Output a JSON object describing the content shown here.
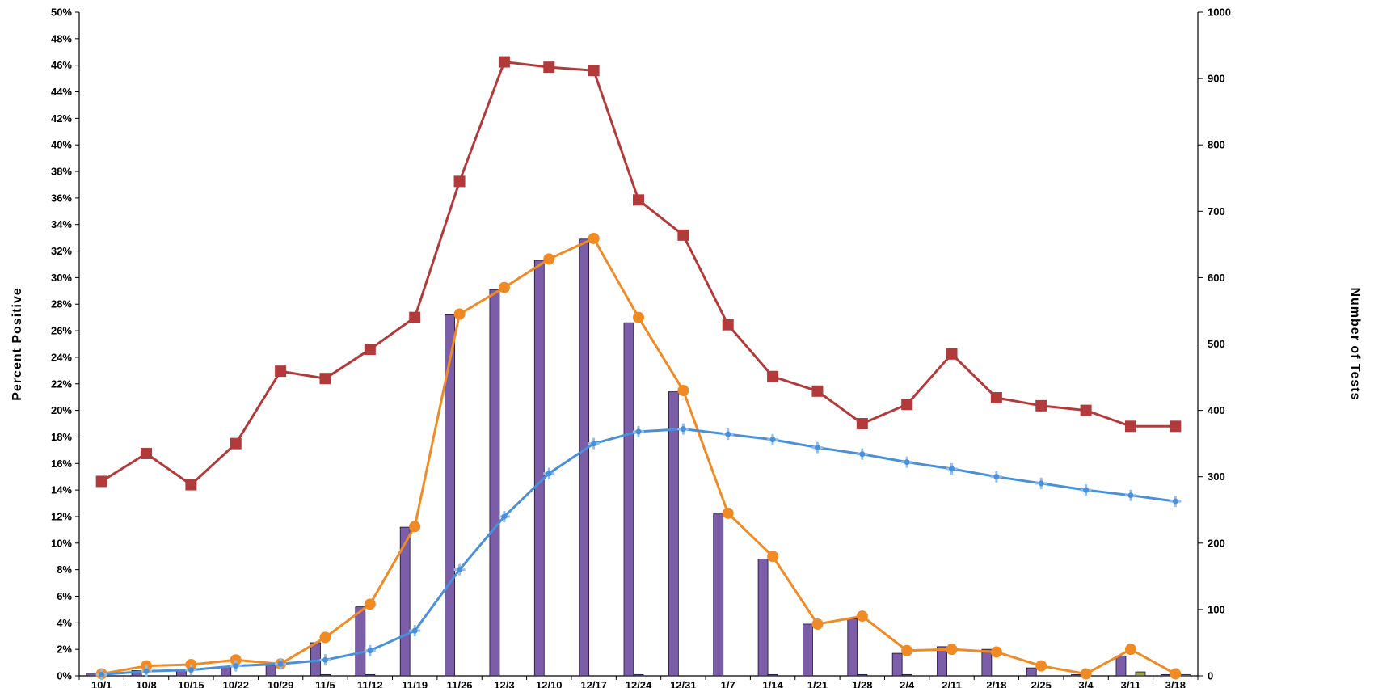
{
  "chart_data": {
    "type": "bar",
    "title": "",
    "ylabel": "Percent Positive",
    "y2label": "Number of Tests",
    "ylim": [
      0,
      50
    ],
    "y2lim": [
      0,
      1000
    ],
    "categories": [
      "10/1",
      "10/8",
      "10/15",
      "10/22",
      "10/29",
      "11/5",
      "11/12",
      "11/19",
      "11/26",
      "12/3",
      "12/10",
      "12/17",
      "12/24",
      "12/31",
      "1/7",
      "1/14",
      "1/21",
      "1/28",
      "2/4",
      "2/11",
      "2/18",
      "2/25",
      "3/4",
      "3/11",
      "3/18"
    ],
    "y_ticks": [
      "0%",
      "2%",
      "4%",
      "6%",
      "8%",
      "10%",
      "12%",
      "14%",
      "16%",
      "18%",
      "20%",
      "22%",
      "24%",
      "26%",
      "28%",
      "30%",
      "32%",
      "34%",
      "36%",
      "38%",
      "40%",
      "42%",
      "44%",
      "46%",
      "48%",
      "50%"
    ],
    "y2_ticks": [
      "0",
      "100",
      "200",
      "300",
      "400",
      "500",
      "600",
      "700",
      "800",
      "900",
      "1000"
    ],
    "bars": [
      {
        "axis": "y",
        "color": "#7b5ea7",
        "values": [
          0.2,
          0.4,
          0.5,
          0.7,
          0.8,
          2.5,
          5.2,
          11.2,
          27.2,
          29.1,
          31.3,
          32.9,
          26.6,
          21.4,
          12.2,
          8.8,
          3.9,
          4.3,
          1.7,
          2.2,
          2.0,
          0.6,
          0.1,
          1.5,
          0.1
        ]
      },
      {
        "axis": "y",
        "color": "#4e5fa8",
        "values": [
          0.0,
          0.0,
          0.0,
          0.0,
          0.0,
          0.1,
          0.1,
          0.0,
          0.0,
          0.0,
          0.0,
          0.0,
          0.1,
          0.0,
          0.0,
          0.1,
          0.0,
          0.1,
          0.1,
          0.0,
          0.0,
          0.0,
          0.0,
          0.0,
          0.0
        ]
      },
      {
        "axis": "y",
        "color": "#9aa24a",
        "values": [
          0.0,
          0.0,
          0.0,
          0.0,
          0.0,
          0.0,
          0.0,
          0.0,
          0.0,
          0.0,
          0.0,
          0.0,
          0.0,
          0.0,
          0.0,
          0.0,
          0.0,
          0.0,
          0.0,
          0.0,
          0.0,
          0.0,
          0.0,
          0.3,
          0.1
        ]
      }
    ],
    "series": [
      {
        "axis": "y2",
        "color": "#b23a3a",
        "marker": "square",
        "values": [
          293,
          335,
          288,
          350,
          459,
          448,
          492,
          540,
          745,
          925,
          917,
          912,
          717,
          664,
          529,
          451,
          429,
          380,
          409,
          485,
          419,
          407,
          400,
          376,
          376
        ]
      },
      {
        "axis": "y2",
        "color": "#f08a24",
        "marker": "diamond",
        "values": [
          3,
          15,
          17,
          24,
          18,
          58,
          108,
          225,
          545,
          585,
          628,
          659,
          540,
          430,
          245,
          180,
          78,
          90,
          38,
          40,
          36,
          15,
          3,
          40,
          3
        ]
      },
      {
        "axis": "y2",
        "color": "#4a90d9",
        "marker": "cross",
        "values": [
          2,
          7,
          9,
          15,
          18,
          24,
          38,
          68,
          160,
          240,
          305,
          350,
          368,
          372,
          364,
          356,
          344,
          334,
          322,
          312,
          300,
          290,
          280,
          272,
          263
        ]
      }
    ]
  }
}
